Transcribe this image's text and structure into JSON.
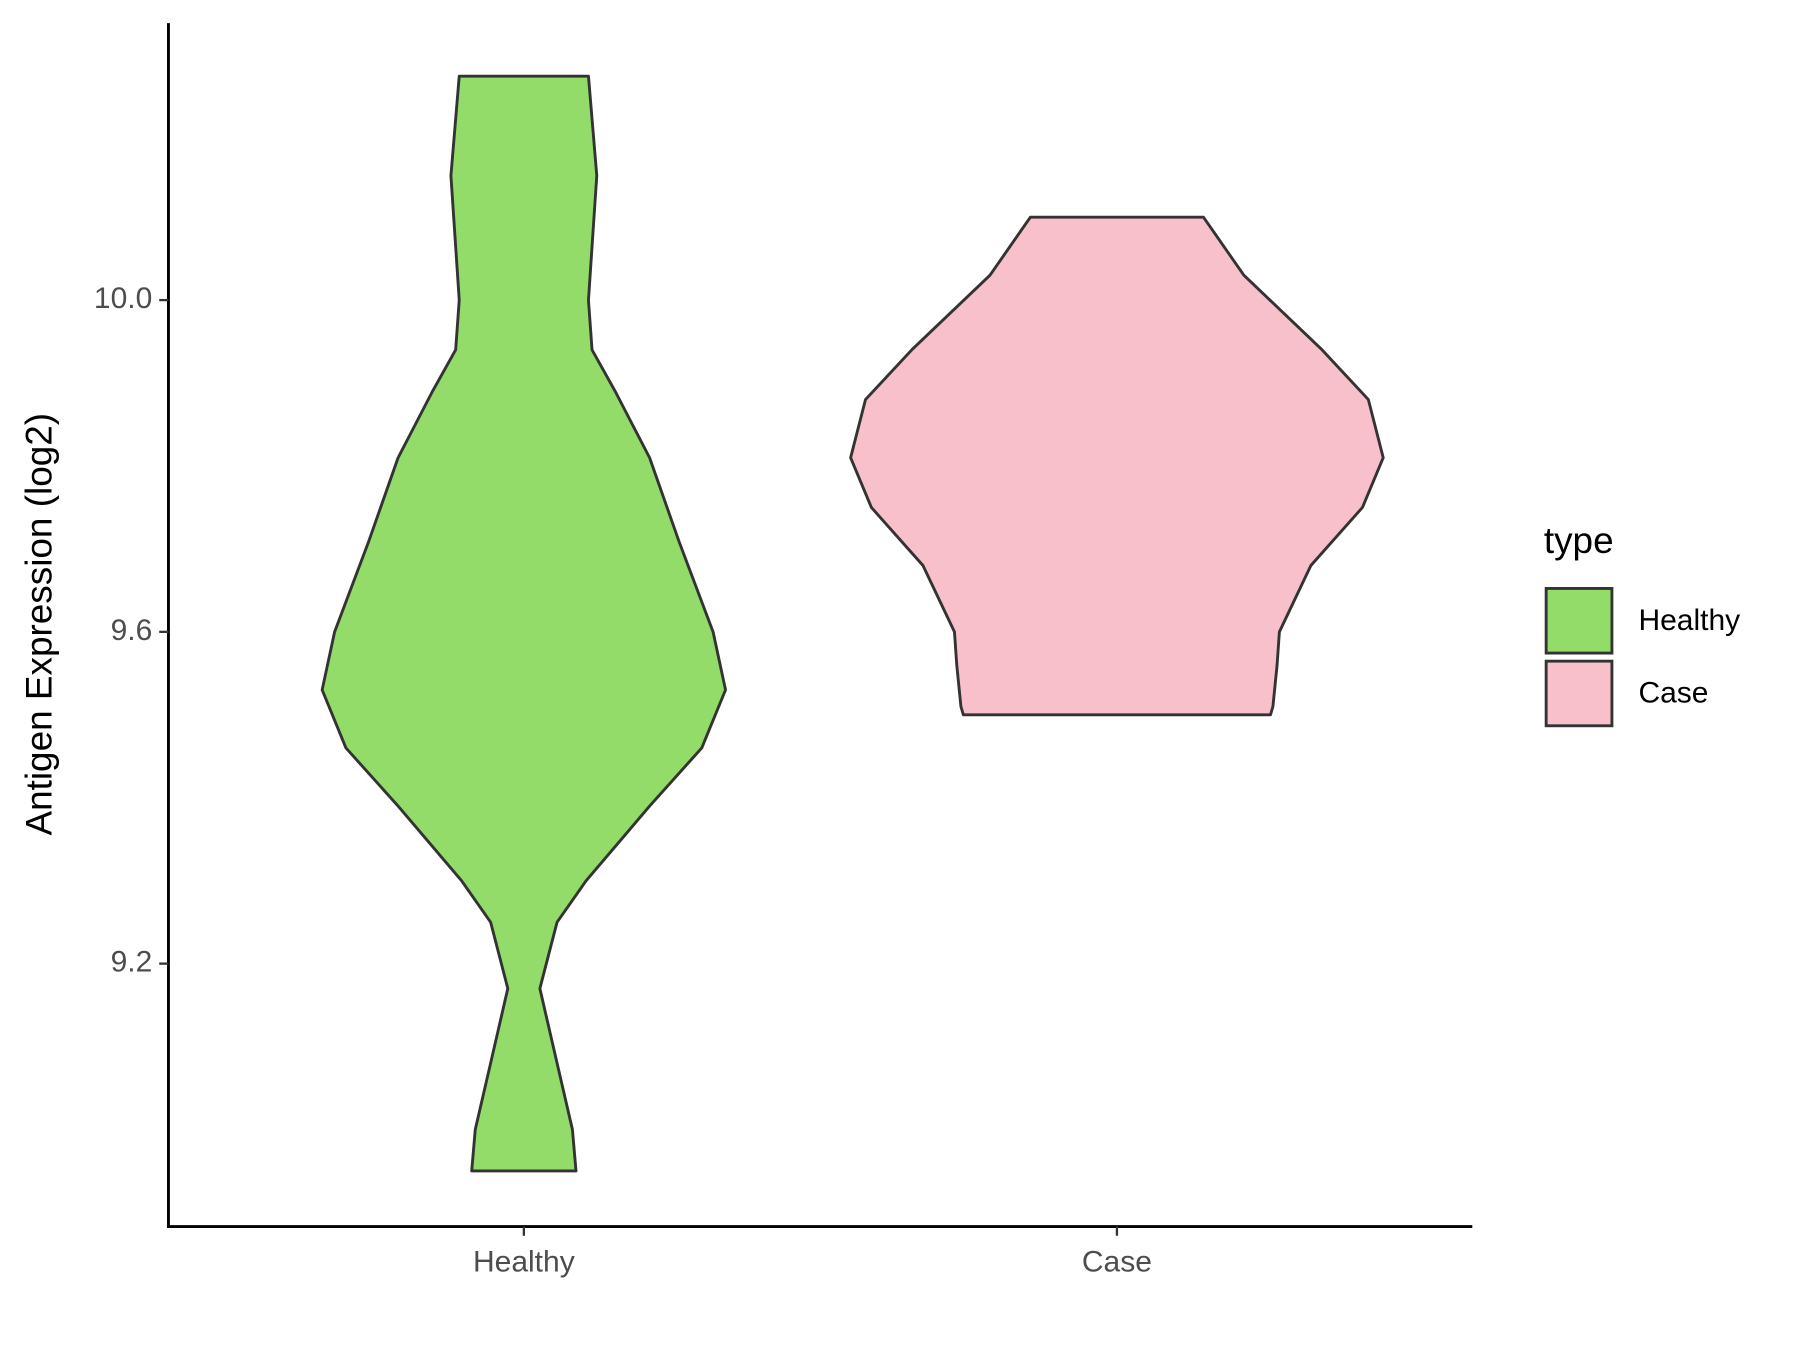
{
  "chart_data": {
    "type": "violin",
    "ylabel": "Antigen Expression (log2)",
    "categories": [
      "Healthy",
      "Case"
    ],
    "legend_title": "type",
    "series": [
      {
        "name": "Healthy",
        "color": "#93dc6a",
        "y": [
          10.27,
          10.15,
          10.0,
          9.94,
          9.89,
          9.81,
          9.71,
          9.6,
          9.53,
          9.46,
          9.39,
          9.3,
          9.25,
          9.17,
          9.08,
          9.0,
          8.95
        ],
        "widths": [
          0.109,
          0.123,
          0.109,
          0.115,
          0.154,
          0.212,
          0.261,
          0.319,
          0.34,
          0.3,
          0.212,
          0.105,
          0.056,
          0.027,
          0.056,
          0.082,
          0.088
        ]
      },
      {
        "name": "Case",
        "color": "#f7c0cb",
        "y": [
          10.1,
          10.03,
          9.94,
          9.88,
          9.81,
          9.75,
          9.68,
          9.6,
          9.56,
          9.51,
          9.5
        ],
        "widths": [
          0.146,
          0.214,
          0.346,
          0.424,
          0.449,
          0.414,
          0.327,
          0.274,
          0.27,
          0.263,
          0.259
        ]
      }
    ],
    "ylim": [
      8.883,
      10.334
    ],
    "yticks": [
      9.2,
      9.6,
      {
        "value": 10,
        "label": "10.0"
      }
    ],
    "grid": false,
    "legend": "right"
  }
}
